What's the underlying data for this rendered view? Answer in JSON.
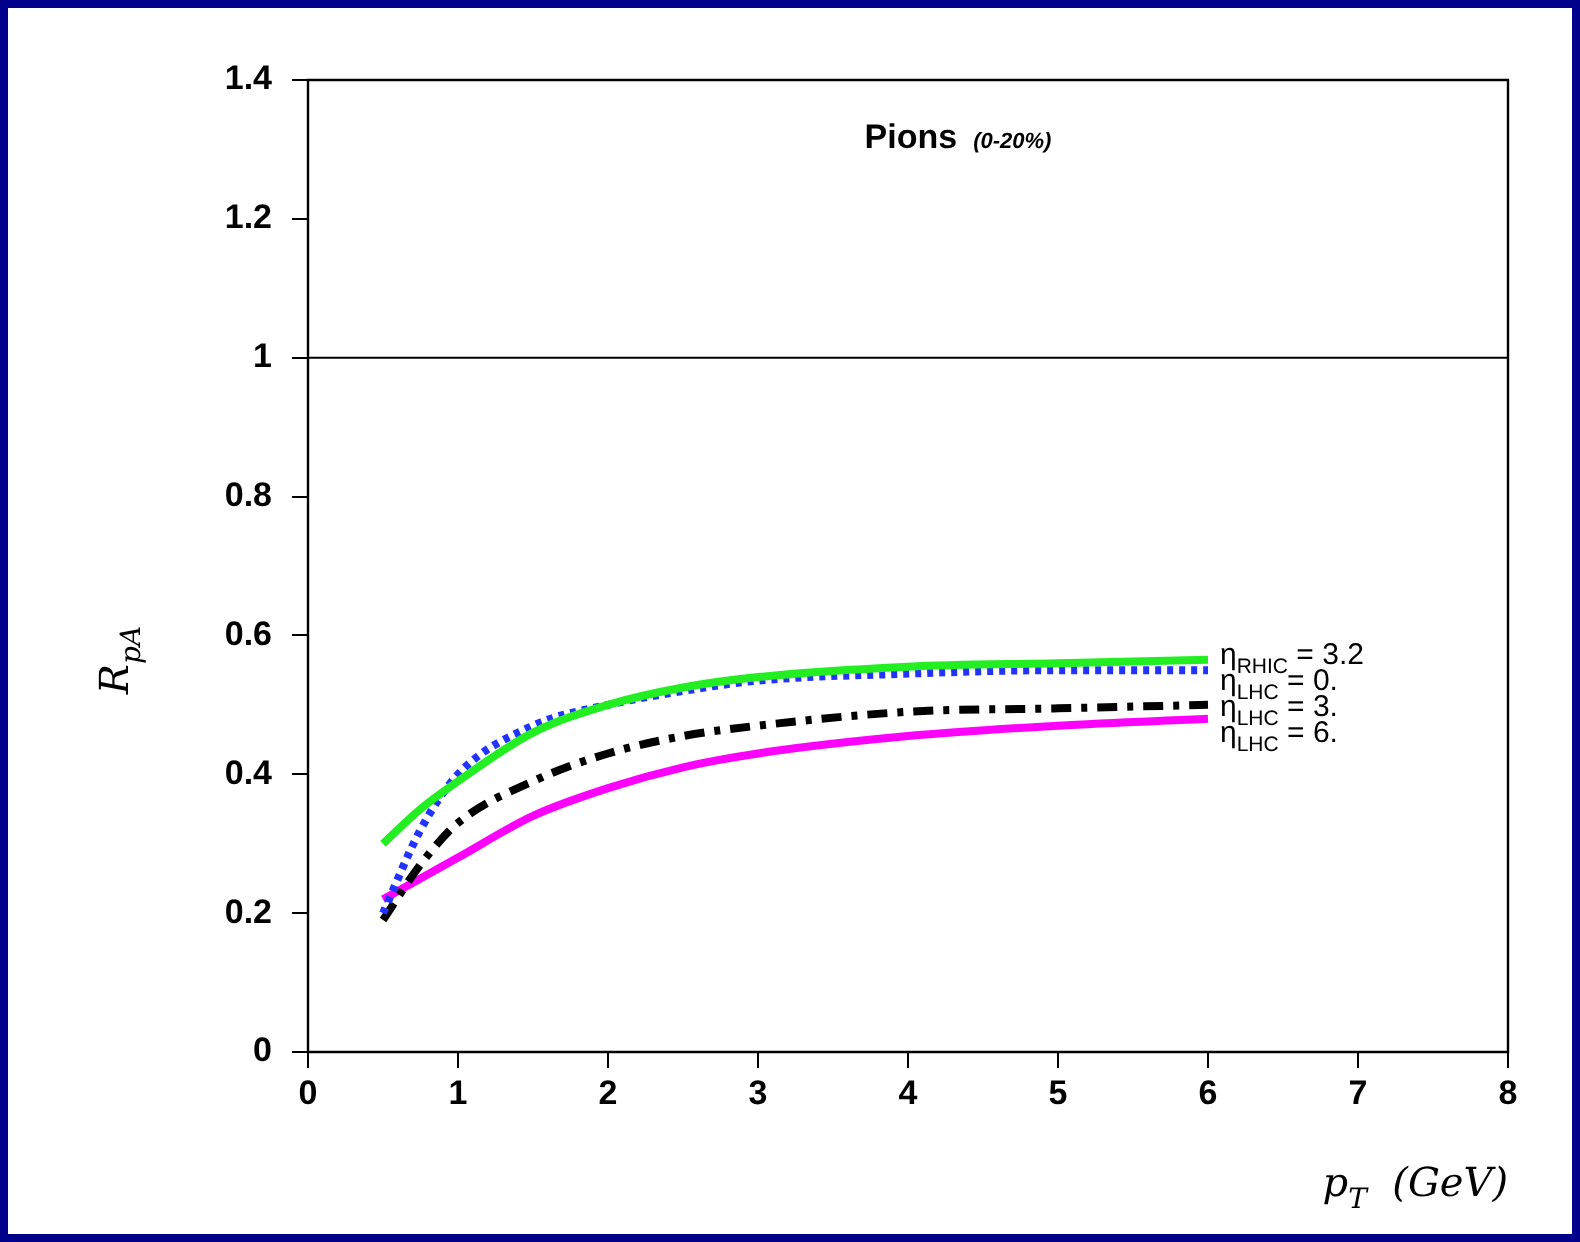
{
  "chart_data": {
    "type": "line",
    "title": "Pions",
    "subtitle": "(0-20%)",
    "xlabel": "p$_{T}$  (GeV)",
    "ylabel": "R$_{pA}$",
    "xlim": [
      0,
      8
    ],
    "xticks": [
      0,
      1,
      2,
      3,
      4,
      5,
      6,
      7,
      8
    ],
    "ylim": [
      0,
      1.4
    ],
    "yticks": [
      0,
      0.2,
      0.4,
      0.6,
      0.8,
      1,
      1.2,
      1.4
    ],
    "grid": false,
    "legend": false,
    "marker": "none",
    "ref_lines": [
      {
        "axis": "y",
        "value": 1,
        "color": "#000000",
        "line_style": "solid"
      }
    ],
    "series": [
      {
        "name": "η$_{RHIC}$ = 3.2",
        "color": "#22ee22",
        "line_style": "solid",
        "x": [
          0.5,
          0.75,
          1,
          1.5,
          2,
          2.5,
          3,
          4,
          5,
          6
        ],
        "values": [
          0.3,
          0.35,
          0.39,
          0.46,
          0.5,
          0.525,
          0.54,
          0.555,
          0.56,
          0.565
        ]
      },
      {
        "name": "η$_{LHC}$ = 0.",
        "color": "#2233ff",
        "line_style": "dotted",
        "x": [
          0.5,
          0.75,
          1,
          1.5,
          2,
          2.5,
          3,
          4,
          5,
          6
        ],
        "values": [
          0.2,
          0.32,
          0.4,
          0.47,
          0.5,
          0.52,
          0.535,
          0.545,
          0.55,
          0.55
        ]
      },
      {
        "name": "η$_{LHC}$ = 3.",
        "color": "#000000",
        "line_style": "dashed",
        "x": [
          0.5,
          0.75,
          1,
          1.5,
          2,
          2.5,
          3,
          4,
          5,
          6
        ],
        "values": [
          0.19,
          0.27,
          0.33,
          0.39,
          0.43,
          0.455,
          0.47,
          0.49,
          0.495,
          0.5
        ]
      },
      {
        "name": "η$_{LHC}$ = 6.",
        "color": "#ff00ff",
        "line_style": "solid",
        "x": [
          0.5,
          0.75,
          1,
          1.5,
          2,
          2.5,
          3,
          4,
          5,
          6
        ],
        "values": [
          0.22,
          0.25,
          0.28,
          0.34,
          0.38,
          0.41,
          0.43,
          0.455,
          0.47,
          0.48
        ]
      }
    ]
  }
}
